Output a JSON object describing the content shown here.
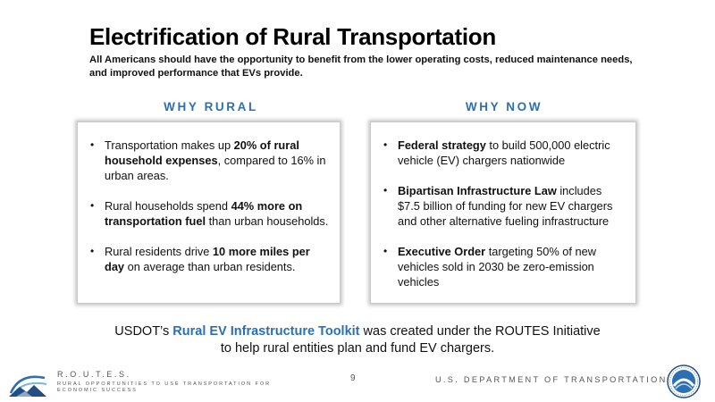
{
  "slide": {
    "title": "Electrification of Rural Transportation",
    "subtitle": "All Americans should have the opportunity to benefit from the lower operating costs, reduced maintenance needs, and improved performance that EVs provide."
  },
  "why_rural": {
    "heading": "WHY RURAL",
    "items": [
      {
        "pre": "Transportation makes up ",
        "bold": "20% of rural household expenses",
        "post": ", compared to 16% in urban areas."
      },
      {
        "pre": "Rural households spend ",
        "bold": "44% more on transportation fuel",
        "post": " than urban households."
      },
      {
        "pre": "Rural residents drive ",
        "bold": "10 more miles per day",
        "post": " on average than urban residents."
      }
    ]
  },
  "why_now": {
    "heading": "WHY NOW",
    "items": [
      {
        "pre": "",
        "bold": "Federal strategy",
        "post": " to build 500,000 electric vehicle (EV) chargers nationwide"
      },
      {
        "pre": "",
        "bold": "Bipartisan Infrastructure Law",
        "post": " includes $7.5 billion of funding for new EV chargers and other alternative fueling infrastructure"
      },
      {
        "pre": "",
        "bold": "Executive Order",
        "post": " targeting 50% of new vehicles sold in 2030 be zero-emission vehicles"
      }
    ]
  },
  "toolkit": {
    "pre": "USDOT’s ",
    "link": "Rural EV Infrastructure Toolkit",
    "post": " was created under the ROUTES Initiative",
    "line2": "to help rural entities plan and fund EV chargers."
  },
  "footer": {
    "routes_title": "R.O.U.T.E.S.",
    "routes_sub": "RURAL OPPORTUNITIES TO USE TRANSPORTATION FOR ECONOMIC SUCCESS",
    "page_number": "9",
    "department": "U.S. DEPARTMENT OF TRANSPORTATION"
  },
  "icons": {
    "routes_logo": "routes-logo-icon",
    "dot_seal": "dot-seal-icon",
    "bullet": "•"
  },
  "colors": {
    "accent": "#2b6fb4",
    "text": "#111111",
    "footer_text": "#555555"
  }
}
